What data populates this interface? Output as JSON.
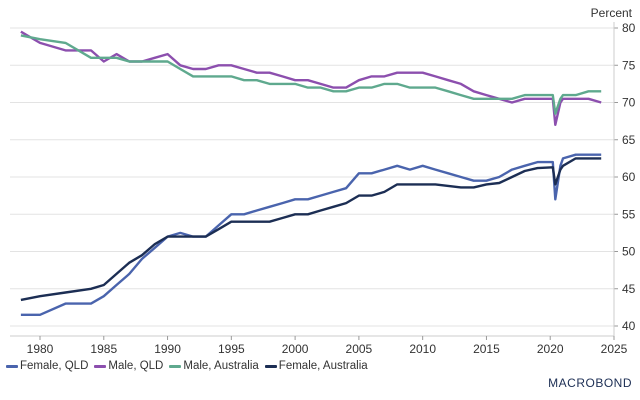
{
  "chart_data": {
    "type": "line",
    "title": "",
    "xlabel": "",
    "ylabel": "Percent",
    "xlim": [
      1978,
      2025
    ],
    "ylim": [
      40,
      80
    ],
    "x_ticks": [
      "1980",
      "1985",
      "1990",
      "1995",
      "2000",
      "2005",
      "2010",
      "2015",
      "2020",
      "2025"
    ],
    "y_ticks": [
      "40",
      "45",
      "50",
      "55",
      "60",
      "65",
      "70",
      "75",
      "80"
    ],
    "grid": "horizontal",
    "legend_position": "bottom-left",
    "x": [
      1978.5,
      1980,
      1982,
      1984,
      1985,
      1986,
      1987,
      1988,
      1989,
      1990,
      1991,
      1992,
      1993,
      1994,
      1995,
      1996,
      1997,
      1998,
      1999,
      2000,
      2001,
      2002,
      2003,
      2004,
      2005,
      2006,
      2007,
      2008,
      2009,
      2010,
      2011,
      2012,
      2013,
      2014,
      2015,
      2016,
      2017,
      2018,
      2019,
      2020.2,
      2020.4,
      2020.8,
      2021,
      2022,
      2023,
      2024
    ],
    "series": [
      {
        "name": "Female, QLD",
        "color": "#4a64ad",
        "values": [
          41.5,
          41.5,
          43,
          43,
          44,
          45.5,
          47,
          49,
          50.5,
          52,
          52.5,
          52,
          52,
          53.5,
          55,
          55,
          55.5,
          56,
          56.5,
          57,
          57,
          57.5,
          58,
          58.5,
          60.5,
          60.5,
          61,
          61.5,
          61,
          61.5,
          61,
          60.5,
          60,
          59.5,
          59.5,
          60,
          61,
          61.5,
          62,
          62,
          57,
          61.5,
          62.5,
          63,
          63,
          63
        ]
      },
      {
        "name": "Male, QLD",
        "color": "#8c4fae",
        "values": [
          79.5,
          78,
          77,
          77,
          75.5,
          76.5,
          75.5,
          75.5,
          76,
          76.5,
          75,
          74.5,
          74.5,
          75,
          75,
          74.5,
          74,
          74,
          73.5,
          73,
          73,
          72.5,
          72,
          72,
          73,
          73.5,
          73.5,
          74,
          74,
          74,
          73.5,
          73,
          72.5,
          71.5,
          71,
          70.5,
          70,
          70.5,
          70.5,
          70.5,
          67,
          70,
          70.5,
          70.5,
          70.5,
          70
        ]
      },
      {
        "name": "Male, Australia",
        "color": "#5fa98e",
        "values": [
          79,
          78.5,
          78,
          76,
          76,
          76,
          75.5,
          75.5,
          75.5,
          75.5,
          74.5,
          73.5,
          73.5,
          73.5,
          73.5,
          73,
          73,
          72.5,
          72.5,
          72.5,
          72,
          72,
          71.5,
          71.5,
          72,
          72,
          72.5,
          72.5,
          72,
          72,
          72,
          71.5,
          71,
          70.5,
          70.5,
          70.5,
          70.5,
          71,
          71,
          71,
          68.5,
          70.5,
          71,
          71,
          71.5,
          71.5
        ]
      },
      {
        "name": "Female, Australia",
        "color": "#1c2e54",
        "values": [
          43.5,
          44,
          44.5,
          45,
          45.5,
          47,
          48.5,
          49.5,
          51,
          52,
          52,
          52,
          52,
          53,
          54,
          54,
          54,
          54,
          54.5,
          55,
          55,
          55.5,
          56,
          56.5,
          57.5,
          57.5,
          58,
          59,
          59,
          59,
          59,
          58.8,
          58.6,
          58.6,
          59,
          59.2,
          60,
          60.8,
          61.2,
          61.3,
          59,
          61,
          61.5,
          62.5,
          62.5,
          62.5
        ]
      }
    ]
  },
  "brand": "MACROBOND"
}
